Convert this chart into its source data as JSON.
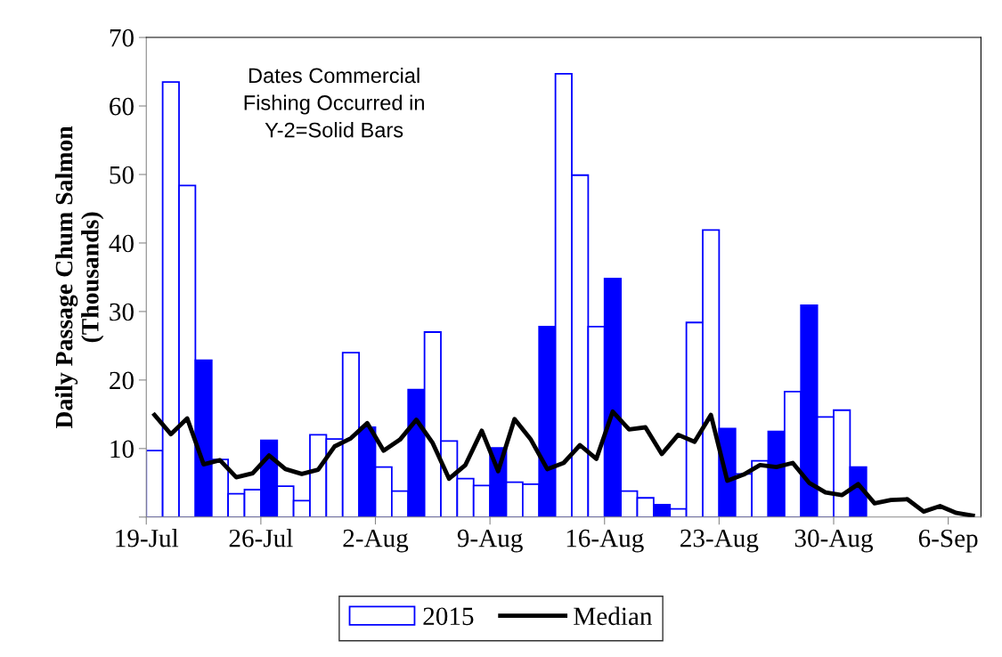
{
  "chart_data": {
    "type": "bar",
    "ylabel": "Daily Passage Chum Salmon\n(Thousands)",
    "annotations": [
      "Dates Commercial\nFishing Occurred in\nY-2=Solid Bars"
    ],
    "x": [
      "2015-07-19T12:00",
      "2015-07-20T12:00",
      "2015-07-21T12:00",
      "2015-07-22T12:00",
      "2015-07-23T12:00",
      "2015-07-24T12:00",
      "2015-07-25T12:00",
      "2015-07-26T12:00",
      "2015-07-27T12:00",
      "2015-07-28T12:00",
      "2015-07-29T12:00",
      "2015-07-30T12:00",
      "2015-07-31T12:00",
      "2015-08-01T12:00",
      "2015-08-02T12:00",
      "2015-08-03T12:00",
      "2015-08-04T12:00",
      "2015-08-05T12:00",
      "2015-08-06T12:00",
      "2015-08-07T12:00",
      "2015-08-08T12:00",
      "2015-08-09T12:00",
      "2015-08-10T12:00",
      "2015-08-11T12:00",
      "2015-08-12T12:00",
      "2015-08-13T12:00",
      "2015-08-14T12:00",
      "2015-08-15T12:00",
      "2015-08-16T12:00",
      "2015-08-17T12:00",
      "2015-08-18T12:00",
      "2015-08-19T12:00",
      "2015-08-20T12:00",
      "2015-08-21T12:00",
      "2015-08-22T12:00",
      "2015-08-23T12:00",
      "2015-08-24T12:00",
      "2015-08-25T12:00",
      "2015-08-26T12:00",
      "2015-08-27T12:00",
      "2015-08-28T12:00",
      "2015-08-29T12:00",
      "2015-08-30T12:00",
      "2015-08-31T12:00"
    ],
    "series": [
      {
        "name": "2015",
        "color": "#0000ff",
        "values": [
          9.7,
          63.5,
          48.4,
          22.9,
          8.4,
          3.4,
          4.0,
          11.2,
          4.5,
          2.4,
          12.0,
          11.4,
          24.0,
          13.1,
          7.3,
          3.8,
          18.6,
          27.0,
          11.1,
          5.6,
          4.6,
          10.1,
          5.1,
          4.8,
          27.8,
          64.7,
          49.9,
          27.8,
          34.8,
          3.8,
          2.8,
          1.8,
          1.2,
          28.4,
          41.9,
          12.9,
          6.3,
          8.2,
          12.5,
          18.3,
          30.9,
          14.6,
          15.6,
          7.3
        ],
        "colors": [
          "#ffffff",
          "#ffffff",
          "#ffffff",
          "#0000ff",
          "#ffffff",
          "#ffffff",
          "#ffffff",
          "#0000ff",
          "#ffffff",
          "#ffffff",
          "#ffffff",
          "#ffffff",
          "#ffffff",
          "#0000ff",
          "#ffffff",
          "#ffffff",
          "#0000ff",
          "#ffffff",
          "#ffffff",
          "#ffffff",
          "#ffffff",
          "#0000ff",
          "#ffffff",
          "#ffffff",
          "#0000ff",
          "#ffffff",
          "#ffffff",
          "#ffffff",
          "#0000ff",
          "#ffffff",
          "#ffffff",
          "#0000ff",
          "#ffffff",
          "#ffffff",
          "#ffffff",
          "#0000ff",
          "#ffffff",
          "#ffffff",
          "#0000ff",
          "#ffffff",
          "#0000ff",
          "#ffffff",
          "#ffffff",
          "#0000ff"
        ]
      },
      {
        "name": "Median",
        "type": "line",
        "color": "#000000",
        "x": [
          "2015-07-19T12:00",
          "2015-07-20T12:00",
          "2015-07-21T12:00",
          "2015-07-22T12:00",
          "2015-07-23T12:00",
          "2015-07-24T12:00",
          "2015-07-25T12:00",
          "2015-07-26T12:00",
          "2015-07-27T12:00",
          "2015-07-28T12:00",
          "2015-07-29T12:00",
          "2015-07-30T12:00",
          "2015-07-31T12:00",
          "2015-08-01T12:00",
          "2015-08-02T12:00",
          "2015-08-03T12:00",
          "2015-08-04T12:00",
          "2015-08-05T12:00",
          "2015-08-06T12:00",
          "2015-08-07T12:00",
          "2015-08-08T12:00",
          "2015-08-09T12:00",
          "2015-08-10T12:00",
          "2015-08-11T12:00",
          "2015-08-12T12:00",
          "2015-08-13T12:00",
          "2015-08-14T12:00",
          "2015-08-15T12:00",
          "2015-08-16T12:00",
          "2015-08-17T12:00",
          "2015-08-18T12:00",
          "2015-08-19T12:00",
          "2015-08-20T12:00",
          "2015-08-21T12:00",
          "2015-08-22T12:00",
          "2015-08-23T12:00",
          "2015-08-24T12:00",
          "2015-08-25T12:00",
          "2015-08-26T12:00",
          "2015-08-27T12:00",
          "2015-08-28T12:00",
          "2015-08-29T12:00",
          "2015-08-30T12:00",
          "2015-08-31T12:00",
          "2015-09-01T12:00",
          "2015-09-02T12:00",
          "2015-09-03T12:00",
          "2015-09-04T12:00",
          "2015-09-05T12:00",
          "2015-09-06T12:00",
          "2015-09-07T12:00"
        ],
        "values": [
          14.9,
          12.1,
          14.4,
          7.7,
          8.3,
          5.8,
          6.4,
          9.0,
          7.0,
          6.3,
          6.9,
          10.3,
          11.5,
          13.7,
          9.7,
          11.3,
          14.2,
          10.8,
          5.6,
          7.6,
          12.6,
          6.7,
          14.3,
          11.3,
          7.0,
          7.9,
          10.5,
          8.5,
          15.4,
          12.8,
          13.1,
          9.2,
          12.0,
          11.0,
          14.9,
          5.3,
          6.2,
          7.6,
          7.3,
          7.9,
          5.0,
          3.6,
          3.2,
          4.8,
          2.0,
          2.5,
          2.6,
          0.8,
          1.6,
          0.6,
          0.2
        ]
      }
    ],
    "xlim": [
      "2015-07-19",
      "2015-09-08"
    ],
    "xticks": [
      {
        "value": "2015-07-19",
        "label": "19-Jul"
      },
      {
        "value": "2015-07-26",
        "label": "26-Jul"
      },
      {
        "value": "2015-08-02",
        "label": "2-Aug"
      },
      {
        "value": "2015-08-09",
        "label": "9-Aug"
      },
      {
        "value": "2015-08-16",
        "label": "16-Aug"
      },
      {
        "value": "2015-08-23",
        "label": "23-Aug"
      },
      {
        "value": "2015-08-30",
        "label": "30-Aug"
      },
      {
        "value": "2015-09-06",
        "label": "6-Sep"
      }
    ],
    "ylim": [
      0,
      70
    ],
    "yticks": [
      {
        "value": 0,
        "label": null
      },
      10,
      20,
      30,
      40,
      50,
      60,
      70
    ],
    "grid": false,
    "legend": "bottom",
    "marker": "none",
    "line_style": "solid"
  }
}
